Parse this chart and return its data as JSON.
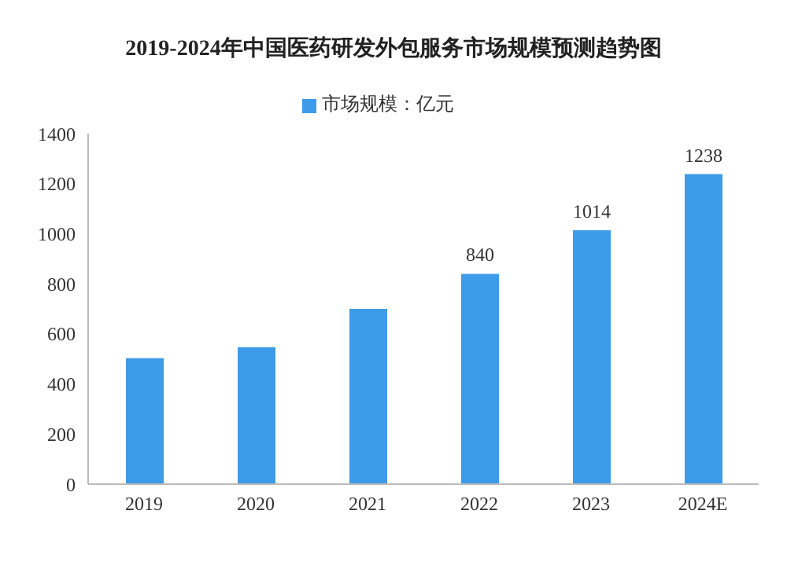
{
  "chart_data": {
    "type": "bar",
    "title": "2019-2024年中国医药研发外包服务市场规模预测趋势图",
    "categories": [
      "2019",
      "2020",
      "2021",
      "2022",
      "2023",
      "2024E"
    ],
    "series": [
      {
        "name": "市场规模：亿元",
        "color": "#3d9be9",
        "values": [
          503,
          547,
          700,
          840,
          1014,
          1238
        ],
        "value_labels": [
          null,
          null,
          null,
          "840",
          "1014",
          "1238"
        ]
      }
    ],
    "ylim": [
      0,
      1400
    ],
    "yticks": [
      0,
      200,
      400,
      600,
      800,
      1000,
      1200,
      1400
    ],
    "grid": false,
    "legend": "top"
  }
}
